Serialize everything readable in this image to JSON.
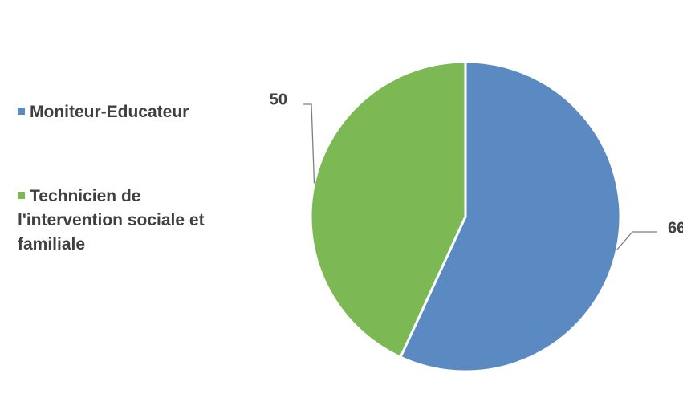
{
  "chart_data": {
    "type": "pie",
    "categories": [
      "Moniteur-Educateur",
      "Technicien de l'intervention sociale et familiale"
    ],
    "values": [
      66,
      50
    ],
    "colors": [
      "#5b8ac3",
      "#7cb853"
    ],
    "legend": "left"
  }
}
